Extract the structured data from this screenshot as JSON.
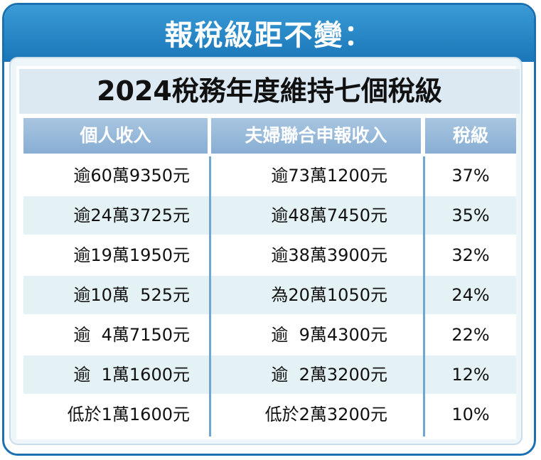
{
  "banner": {
    "title": "報稅級距不變："
  },
  "table": {
    "title": "2024稅務年度維持七個稅級",
    "headers": [
      "個人收入",
      "夫婦聯合申報收入",
      "稅級"
    ],
    "rows": [
      {
        "single": "逾60萬9350元",
        "joint": "逾73萬1200元",
        "rate": "37%"
      },
      {
        "single": "逾24萬3725元",
        "joint": "逾48萬7450元",
        "rate": "35%"
      },
      {
        "single": "逾19萬1950元",
        "joint": "逾38萬3900元",
        "rate": "32%"
      },
      {
        "single": "逾10萬  525元",
        "joint": "為20萬1050元",
        "rate": "24%"
      },
      {
        "single": "逾  4萬7150元",
        "joint": "逾  9萬4300元",
        "rate": "22%"
      },
      {
        "single": "逾  1萬1600元",
        "joint": "逾  2萬3200元",
        "rate": "12%"
      },
      {
        "single": "低於1萬1600元",
        "joint": "低於2萬3200元",
        "rate": "10%"
      }
    ]
  },
  "colors": {
    "banner": "#1a76b8",
    "header": "#88aed3",
    "stripe": "#e4f2f6"
  }
}
